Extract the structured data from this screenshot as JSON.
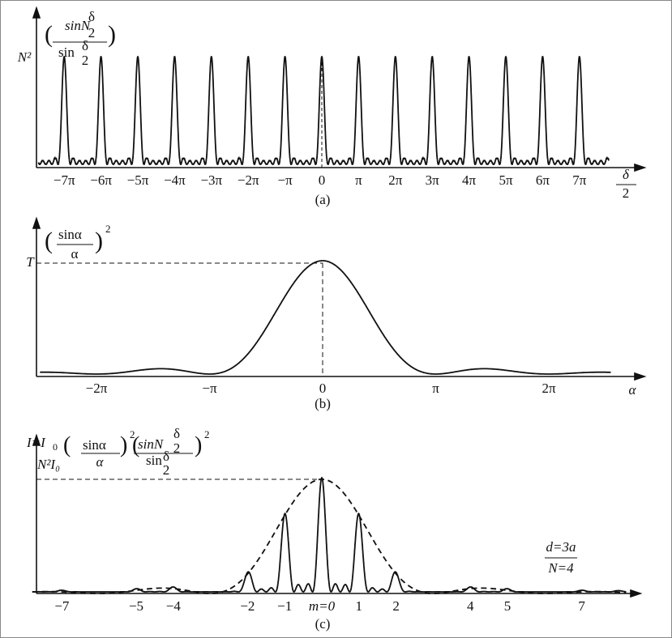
{
  "panel_a": {
    "formula": [
      "(",
      "sinN",
      "δ",
      "2",
      "sin",
      "δ",
      "2",
      ")"
    ],
    "y_label": "N²",
    "x_ticks": [
      "−7π",
      "−6π",
      "−5π",
      "−4π",
      "−3π",
      "−2π",
      "−π",
      "0",
      "π",
      "2π",
      "3π",
      "4π",
      "5π",
      "6π",
      "7π"
    ],
    "x_label": [
      "δ",
      "2"
    ],
    "caption": "(a)"
  },
  "panel_b": {
    "formula": [
      "(",
      "sinα",
      "α",
      ")",
      "2"
    ],
    "y_label": "T",
    "x_ticks": [
      "−2π",
      "−π",
      "0",
      "π",
      "2π"
    ],
    "x_label": "α",
    "caption": "(b)"
  },
  "panel_c": {
    "formula": [
      "I=I",
      "0",
      "(",
      "sinα",
      "α",
      ")",
      "2",
      "(",
      "sinN",
      "δ",
      "2",
      "sin",
      "δ",
      "2",
      ")",
      "2"
    ],
    "y_label": "N²I₀",
    "x_ticks": [
      "−7",
      "−5",
      "−4",
      "−2",
      "−1",
      "m=0",
      "1",
      "2",
      "4",
      "5",
      "7"
    ],
    "note": [
      "d=3a",
      "N=4"
    ],
    "caption": "(c)"
  }
}
